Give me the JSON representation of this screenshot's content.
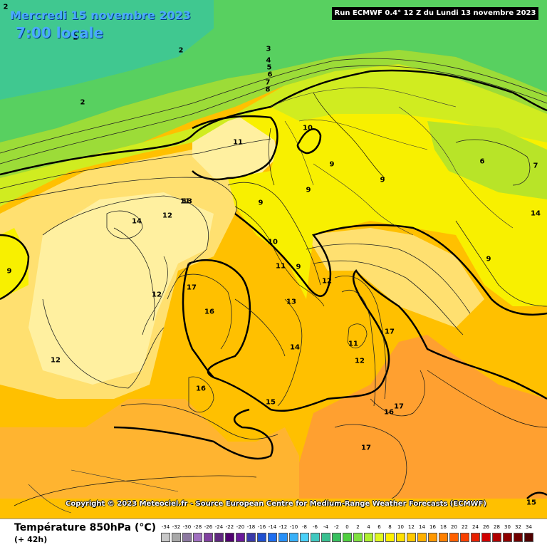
{
  "header": {
    "date": "Mercredi 15 novembre 2023",
    "time": "7:00 locale",
    "run": "Run ECMWF 0.4° 12 Z du Lundi 13 novembre 2023"
  },
  "footer": {
    "copyright": "Copyright © 2023 Meteociel.fr - Source European Centre for Medium-Range Weather Forecasts (ECMWF)",
    "parameter": "Température 850hPa (°C)",
    "lead": "(+ 42h)"
  },
  "scale": {
    "values": [
      "-34",
      "-32",
      "-30",
      "-28",
      "-26",
      "-24",
      "-22",
      "-20",
      "-18",
      "-16",
      "-14",
      "-12",
      "-10",
      "-8",
      "-6",
      "-4",
      "-2",
      "0",
      "2",
      "4",
      "6",
      "8",
      "10",
      "12",
      "14",
      "16",
      "18",
      "20",
      "22",
      "24",
      "26",
      "28",
      "30",
      "32",
      "34"
    ],
    "colors": [
      "#c8c8c8",
      "#a8a8a8",
      "#8c78a0",
      "#a070c0",
      "#8040a0",
      "#602880",
      "#500070",
      "#6a1a9a",
      "#3a3aa8",
      "#2050d0",
      "#1e6ef0",
      "#2890f8",
      "#38b0f8",
      "#48d0f8",
      "#40c8c0",
      "#38c090",
      "#38c060",
      "#50d040",
      "#80e040",
      "#b0f030",
      "#e0f820",
      "#fff000",
      "#ffe000",
      "#ffc800",
      "#ffb000",
      "#ff9800",
      "#ff8000",
      "#ff6000",
      "#f84000",
      "#e82000",
      "#d00000",
      "#b00000",
      "#900000",
      "#700000",
      "#500000"
    ]
  },
  "contour_labels": [
    {
      "text": "2"
    },
    {
      "text": "2"
    },
    {
      "text": "2"
    },
    {
      "text": "2"
    },
    {
      "text": "3"
    },
    {
      "text": "4"
    },
    {
      "text": "5"
    },
    {
      "text": "6"
    },
    {
      "text": "7"
    },
    {
      "text": "8"
    },
    {
      "text": "10"
    },
    {
      "text": "11"
    },
    {
      "text": "11"
    },
    {
      "text": "9"
    },
    {
      "text": "9"
    },
    {
      "text": "9"
    },
    {
      "text": "6"
    },
    {
      "text": "7"
    },
    {
      "text": "14"
    },
    {
      "text": "13"
    },
    {
      "text": "12"
    },
    {
      "text": "14"
    },
    {
      "text": "9"
    },
    {
      "text": "9"
    },
    {
      "text": "10"
    },
    {
      "text": "11"
    },
    {
      "text": "9"
    },
    {
      "text": "12"
    },
    {
      "text": "17"
    },
    {
      "text": "16"
    },
    {
      "text": "12"
    },
    {
      "text": "13"
    },
    {
      "text": "14"
    },
    {
      "text": "17"
    },
    {
      "text": "11"
    },
    {
      "text": "12"
    },
    {
      "text": "12"
    },
    {
      "text": "16"
    },
    {
      "text": "15"
    },
    {
      "text": "17"
    },
    {
      "text": "16"
    },
    {
      "text": "17"
    },
    {
      "text": "9"
    },
    {
      "text": "15"
    }
  ]
}
